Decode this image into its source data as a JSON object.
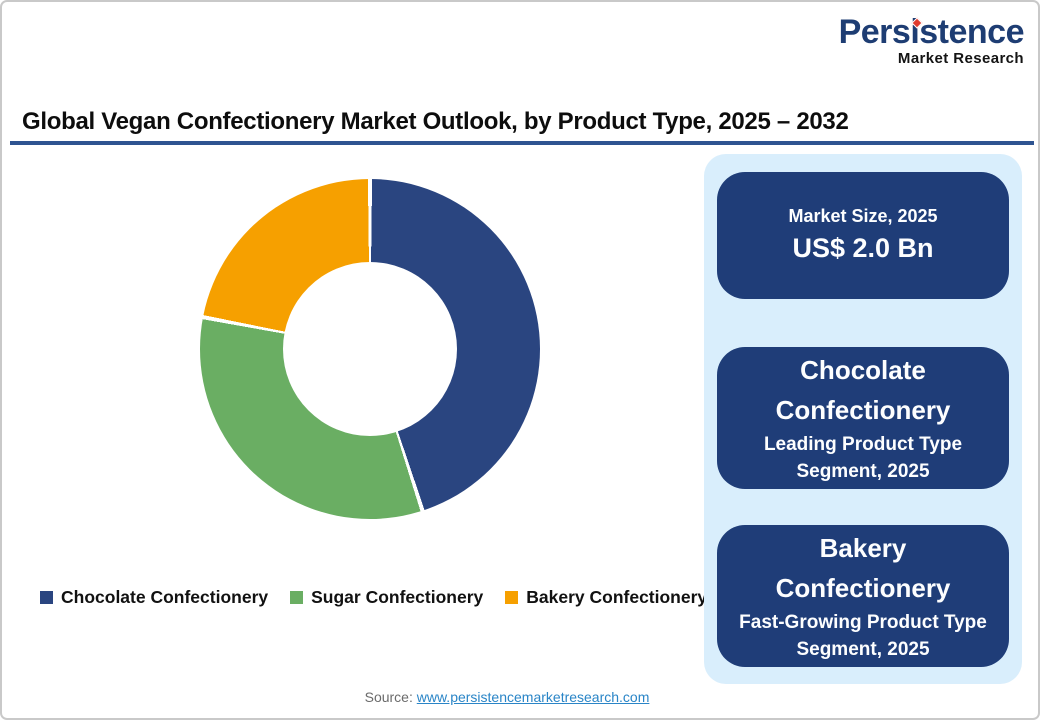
{
  "logo": {
    "brand": "Persistence",
    "subtitle": "Market Research"
  },
  "title": "Global Vegan Confectionery Market Outlook, by Product Type, 2025 – 2032",
  "chart_data": {
    "type": "pie",
    "donut": true,
    "title": "Global Vegan Confectionery Market Outlook, by Product Type, 2025 – 2032",
    "labels": [
      "Chocolate Confectionery",
      "Sugar Confectionery",
      "Bakery Confectionery"
    ],
    "values": [
      45,
      33,
      22
    ],
    "colors": [
      "#2a4580",
      "#6aae63",
      "#f6a000"
    ],
    "legend_position": "bottom",
    "start_angle_deg": 0,
    "direction": "clockwise"
  },
  "panel": {
    "cards": [
      {
        "title": "Market Size, 2025",
        "value": "US$ 2.0 Bn"
      },
      {
        "title": "Chocolate Confectionery",
        "subtitle": "Leading Product Type Segment, 2025"
      },
      {
        "title": "Bakery Confectionery",
        "subtitle": "Fast-Growing Product Type Segment, 2025"
      }
    ]
  },
  "source": {
    "label": "Source: ",
    "link": "www.persistencemarketresearch.com"
  },
  "colors": {
    "logo_blue": "#1e3d73",
    "logo_red": "#e03a2d",
    "title_underline": "#2e5491",
    "panel_blue": "#d9eefc",
    "navy": "#1f3d78",
    "link_blue": "#2a85c7",
    "source_gray": "#6b6b6b"
  }
}
